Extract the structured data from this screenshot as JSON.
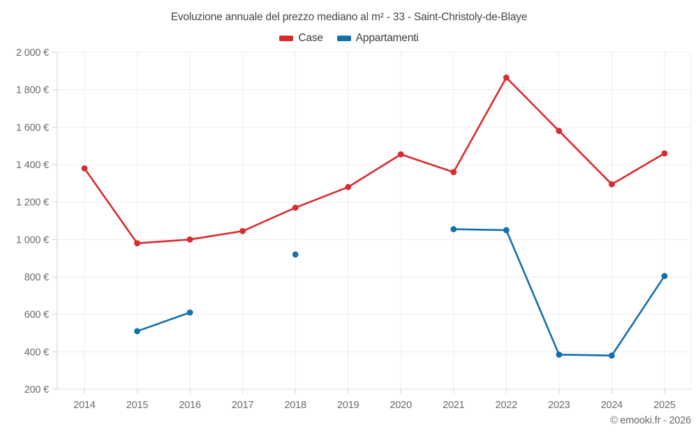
{
  "chart": {
    "title": "Evoluzione annuale del prezzo mediano al m² - 33 - Saint-Christoly-de-Blaye",
    "credit": "© emooki.fr - 2026"
  },
  "chart_data": {
    "type": "line",
    "title": "Evoluzione annuale del prezzo mediano al m² - 33 - Saint-Christoly-de-Blaye",
    "x": [
      "2014",
      "2015",
      "2016",
      "2017",
      "2018",
      "2019",
      "2020",
      "2021",
      "2022",
      "2023",
      "2024",
      "2025"
    ],
    "series": [
      {
        "name": "Case",
        "color": "#d92b2e",
        "values": [
          1380,
          980,
          1000,
          1045,
          1170,
          1280,
          1455,
          1360,
          1865,
          1580,
          1295,
          1460
        ]
      },
      {
        "name": "Appartamenti",
        "color": "#1270ab",
        "values": [
          null,
          510,
          610,
          null,
          920,
          null,
          null,
          1055,
          1050,
          385,
          380,
          805
        ]
      }
    ],
    "ylim": [
      200,
      2000
    ],
    "ytick_step": 200,
    "ytick_labels": [
      "200 €",
      "400 €",
      "600 €",
      "800 €",
      "1 000 €",
      "1 200 €",
      "1 400 €",
      "1 600 €",
      "1 800 €",
      "2 000 €"
    ],
    "currency_suffix": "€",
    "grid": true,
    "legend_position": "top",
    "marker": "circle"
  },
  "colors": {
    "grid": "#ededed",
    "axis": "#d2d2d2",
    "tick": "#cfcfcf",
    "bottom_axis": "#e2e2e2"
  }
}
